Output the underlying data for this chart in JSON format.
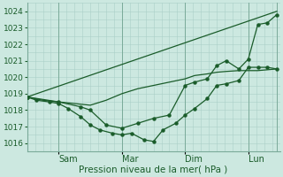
{
  "bg_color": "#cce8e0",
  "grid_color": "#aacfc8",
  "line_color": "#1a5c2a",
  "tick_label_color": "#1a5c2a",
  "xlabel": "Pression niveau de la mer( hPa )",
  "ylim": [
    1015.5,
    1024.5
  ],
  "yticks": [
    1016,
    1017,
    1018,
    1019,
    1020,
    1021,
    1022,
    1023,
    1024
  ],
  "x_day_positions": [
    0.0,
    1.0,
    3.0,
    5.0,
    7.0,
    7.9
  ],
  "x_tick_labels": [
    "Sam",
    "Mar",
    "Dim",
    "Lun"
  ],
  "x_tick_positions": [
    1.0,
    3.0,
    5.0,
    7.0
  ],
  "xlim": [
    0.0,
    8.0
  ],
  "straight_line_x": [
    0.0,
    7.9
  ],
  "straight_line_y": [
    1018.8,
    1024.0
  ],
  "series_dip_x": [
    0.0,
    0.3,
    0.7,
    1.0,
    1.3,
    1.7,
    2.0,
    2.3,
    2.7,
    3.0,
    3.3,
    3.7,
    4.0,
    4.3,
    4.7,
    5.0,
    5.3,
    5.7,
    6.0,
    6.3,
    6.7,
    7.0,
    7.3,
    7.6,
    7.9
  ],
  "series_dip_y": [
    1018.8,
    1018.6,
    1018.5,
    1018.4,
    1018.1,
    1017.6,
    1017.1,
    1016.8,
    1016.6,
    1016.5,
    1016.6,
    1016.2,
    1016.1,
    1016.8,
    1017.2,
    1017.7,
    1018.1,
    1018.7,
    1019.5,
    1019.6,
    1019.8,
    1020.6,
    1020.6,
    1020.6,
    1020.5
  ],
  "series_mid_x": [
    0.0,
    0.5,
    1.0,
    1.5,
    2.0,
    2.5,
    3.0,
    3.5,
    4.0,
    4.5,
    5.0,
    5.3,
    5.7,
    6.0,
    6.3,
    6.7,
    7.0,
    7.3,
    7.6,
    7.9
  ],
  "series_mid_y": [
    1018.8,
    1018.6,
    1018.5,
    1018.4,
    1018.3,
    1018.6,
    1019.0,
    1019.3,
    1019.5,
    1019.7,
    1019.9,
    1020.1,
    1020.2,
    1020.3,
    1020.35,
    1020.4,
    1020.4,
    1020.4,
    1020.45,
    1020.5
  ],
  "series_high_x": [
    0.0,
    1.0,
    1.7,
    2.0,
    2.5,
    3.0,
    3.5,
    4.0,
    4.5,
    5.0,
    5.3,
    5.7,
    6.0,
    6.3,
    6.7,
    7.0,
    7.3,
    7.6,
    7.9
  ],
  "series_high_y": [
    1018.8,
    1018.5,
    1018.2,
    1018.0,
    1017.1,
    1016.9,
    1017.2,
    1017.5,
    1017.7,
    1019.5,
    1019.7,
    1019.9,
    1020.7,
    1021.0,
    1020.5,
    1021.1,
    1023.2,
    1023.3,
    1023.8
  ]
}
